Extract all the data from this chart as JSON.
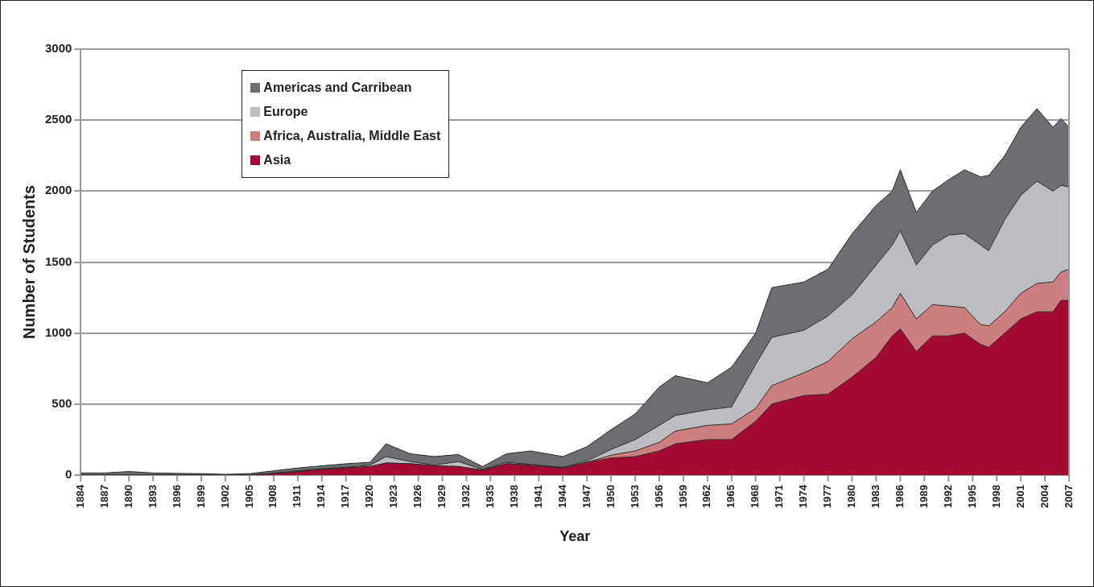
{
  "chart_data": {
    "type": "area",
    "stacked": true,
    "xlabel": "Year",
    "ylabel": "Number of Students",
    "x": [
      1884,
      1887,
      1890,
      1893,
      1896,
      1899,
      1902,
      1905,
      1908,
      1911,
      1914,
      1917,
      1920,
      1922,
      1925,
      1928,
      1931,
      1934,
      1937,
      1940,
      1944,
      1947,
      1950,
      1953,
      1956,
      1958,
      1962,
      1965,
      1968,
      1970,
      1974,
      1977,
      1980,
      1983,
      1985,
      1986,
      1988,
      1990,
      1992,
      1994,
      1996,
      1997,
      1999,
      2001,
      2003,
      2005,
      2006,
      2007
    ],
    "series": [
      {
        "name": "Asia",
        "color": "#a30b35",
        "values": [
          0,
          0,
          0,
          0,
          0,
          0,
          0,
          0,
          10,
          25,
          40,
          50,
          60,
          85,
          80,
          65,
          60,
          35,
          80,
          70,
          50,
          90,
          120,
          130,
          170,
          220,
          250,
          250,
          380,
          500,
          560,
          570,
          690,
          830,
          980,
          1030,
          870,
          980,
          980,
          1000,
          920,
          900,
          1000,
          1100,
          1150,
          1150,
          1230,
          1230
        ]
      },
      {
        "name": "Africa, Australia, Middle East",
        "color": "#cd7f7f",
        "values": [
          0,
          0,
          0,
          0,
          0,
          0,
          0,
          0,
          0,
          0,
          0,
          0,
          0,
          0,
          0,
          0,
          0,
          0,
          0,
          0,
          0,
          0,
          20,
          40,
          60,
          90,
          100,
          110,
          90,
          130,
          160,
          230,
          270,
          250,
          200,
          250,
          230,
          220,
          210,
          180,
          140,
          150,
          150,
          180,
          200,
          210,
          200,
          220
        ]
      },
      {
        "name": "Europe",
        "color": "#bcbdc1",
        "values": [
          0,
          0,
          0,
          0,
          0,
          0,
          0,
          0,
          5,
          5,
          5,
          5,
          10,
          45,
          15,
          5,
          35,
          5,
          10,
          5,
          5,
          10,
          40,
          80,
          120,
          110,
          110,
          120,
          310,
          340,
          300,
          320,
          310,
          400,
          440,
          440,
          380,
          420,
          500,
          520,
          560,
          530,
          650,
          690,
          720,
          640,
          610,
          580
        ]
      },
      {
        "name": "Americas and Carribean",
        "color": "#6d6e71",
        "values": [
          15,
          15,
          25,
          15,
          12,
          10,
          5,
          10,
          15,
          20,
          20,
          25,
          20,
          90,
          55,
          60,
          50,
          20,
          60,
          95,
          75,
          100,
          140,
          180,
          270,
          280,
          190,
          280,
          220,
          350,
          340,
          330,
          430,
          420,
          380,
          430,
          370,
          380,
          390,
          450,
          480,
          530,
          450,
          480,
          510,
          450,
          470,
          420
        ]
      }
    ],
    "xlim": [
      1884,
      2007
    ],
    "xticks": [
      1884,
      1887,
      1890,
      1893,
      1896,
      1899,
      1902,
      1905,
      1908,
      1911,
      1914,
      1917,
      1920,
      1923,
      1926,
      1929,
      1932,
      1935,
      1938,
      1941,
      1944,
      1947,
      1950,
      1953,
      1956,
      1959,
      1962,
      1965,
      1968,
      1971,
      1974,
      1977,
      1980,
      1983,
      1986,
      1989,
      1992,
      1995,
      1998,
      2001,
      2004,
      2007
    ],
    "ylim": [
      0,
      3000
    ],
    "yticks": [
      0,
      500,
      1000,
      1500,
      2000,
      2500,
      3000
    ],
    "grid": "y",
    "legend": "top left"
  }
}
